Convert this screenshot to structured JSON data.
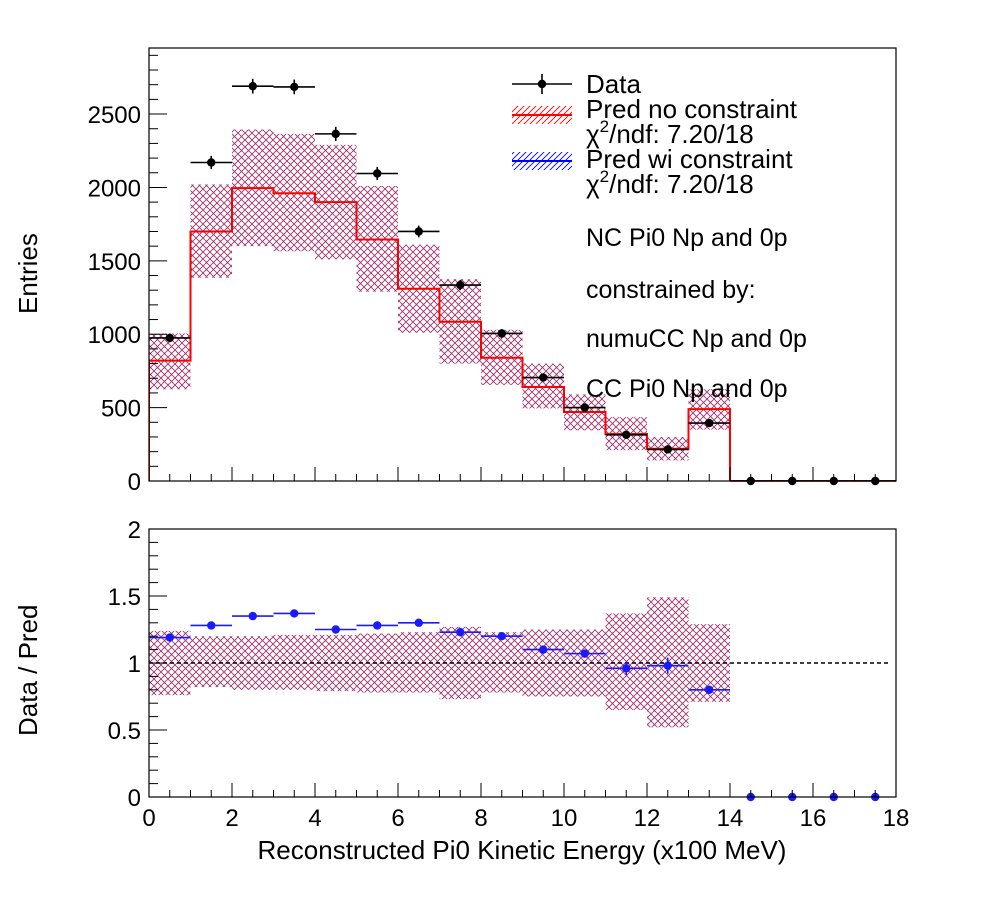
{
  "chart_data": [
    {
      "type": "histogram",
      "panel": "top",
      "ylabel": "Entries",
      "xlim": [
        0,
        18
      ],
      "ylim": [
        0,
        2950
      ],
      "yticks": [
        0,
        500,
        1000,
        1500,
        2000,
        2500
      ],
      "bin_edges": [
        0,
        1,
        2,
        3,
        4,
        5,
        6,
        7,
        8,
        9,
        10,
        11,
        12,
        13,
        14,
        15,
        16,
        17,
        18
      ],
      "legend": [
        {
          "label": "Data",
          "color": "#000000"
        },
        {
          "label": "Pred no constraint",
          "color": "#ff0000"
        },
        {
          "label_prefix": "χ",
          "label_sup": "2",
          "label_rest": "/ndf: 7.20/18",
          "color": "#ff0000"
        },
        {
          "label": "Pred wi constraint",
          "color": "#0000ff"
        },
        {
          "label_prefix": "χ",
          "label_sup": "2",
          "label_rest": "/ndf: 7.20/18",
          "color": "#0000ff"
        }
      ],
      "annotations": [
        "NC Pi0 Np and 0p",
        "constrained by:",
        "numuCC Np and 0p",
        "CC Pi0 Np and 0p"
      ],
      "series": [
        {
          "name": "Data",
          "values": [
            975,
            2170,
            2690,
            2685,
            2365,
            2095,
            1700,
            1335,
            1005,
            705,
            500,
            315,
            215,
            395,
            0,
            0,
            0,
            0
          ],
          "errors": [
            30,
            45,
            50,
            50,
            48,
            45,
            40,
            35,
            30,
            26,
            22,
            18,
            15,
            20,
            0,
            0,
            0,
            0
          ]
        },
        {
          "name": "Pred no constraint",
          "values": [
            820,
            1700,
            1995,
            1960,
            1900,
            1645,
            1310,
            1085,
            840,
            640,
            470,
            320,
            220,
            490,
            0,
            0,
            0,
            0
          ],
          "band_low": [
            625,
            1385,
            1600,
            1565,
            1510,
            1290,
            1010,
            800,
            655,
            495,
            345,
            210,
            140,
            350,
            0,
            0,
            0,
            0
          ],
          "band_high": [
            1005,
            2020,
            2395,
            2365,
            2290,
            2010,
            1610,
            1375,
            1030,
            800,
            590,
            435,
            300,
            625,
            0,
            0,
            0,
            0
          ]
        }
      ]
    },
    {
      "type": "ratio",
      "panel": "bottom",
      "xlabel": "Reconstructed Pi0 Kinetic Energy (x100 MeV)",
      "ylabel": "Data / Pred",
      "xlim": [
        0,
        18
      ],
      "ylim": [
        0,
        2
      ],
      "xticks": [
        0,
        2,
        4,
        6,
        8,
        10,
        12,
        14,
        16,
        18
      ],
      "yticks": [
        0,
        0.5,
        1,
        1.5,
        2
      ],
      "ytick_labels": [
        "0",
        "0.5",
        "1",
        "1.5",
        "2"
      ],
      "reference_line": 1,
      "series": [
        {
          "name": "Data / Pred",
          "values": [
            1.19,
            1.28,
            1.35,
            1.37,
            1.25,
            1.28,
            1.3,
            1.23,
            1.2,
            1.1,
            1.07,
            0.96,
            0.98,
            0.8,
            0,
            0,
            0,
            0
          ],
          "errors": [
            0.03,
            0.025,
            0.02,
            0.02,
            0.02,
            0.02,
            0.02,
            0.02,
            0.025,
            0.03,
            0.03,
            0.05,
            0.06,
            0.03,
            0,
            0,
            0,
            0
          ],
          "band_low": [
            0.76,
            0.82,
            0.8,
            0.8,
            0.79,
            0.78,
            0.78,
            0.73,
            0.78,
            0.75,
            0.75,
            0.65,
            0.52,
            0.71,
            0,
            0,
            0,
            0
          ],
          "band_high": [
            1.24,
            1.2,
            1.2,
            1.21,
            1.21,
            1.22,
            1.23,
            1.27,
            1.23,
            1.25,
            1.25,
            1.37,
            1.49,
            1.29,
            0,
            0,
            0,
            0
          ]
        }
      ]
    }
  ],
  "colors": {
    "data": "#000000",
    "pred_no_constraint": "#ff0000",
    "pred_wi_constraint": "#0000ff",
    "band_hatch": "#a0306a",
    "ratio_points": "#1a1aff"
  }
}
